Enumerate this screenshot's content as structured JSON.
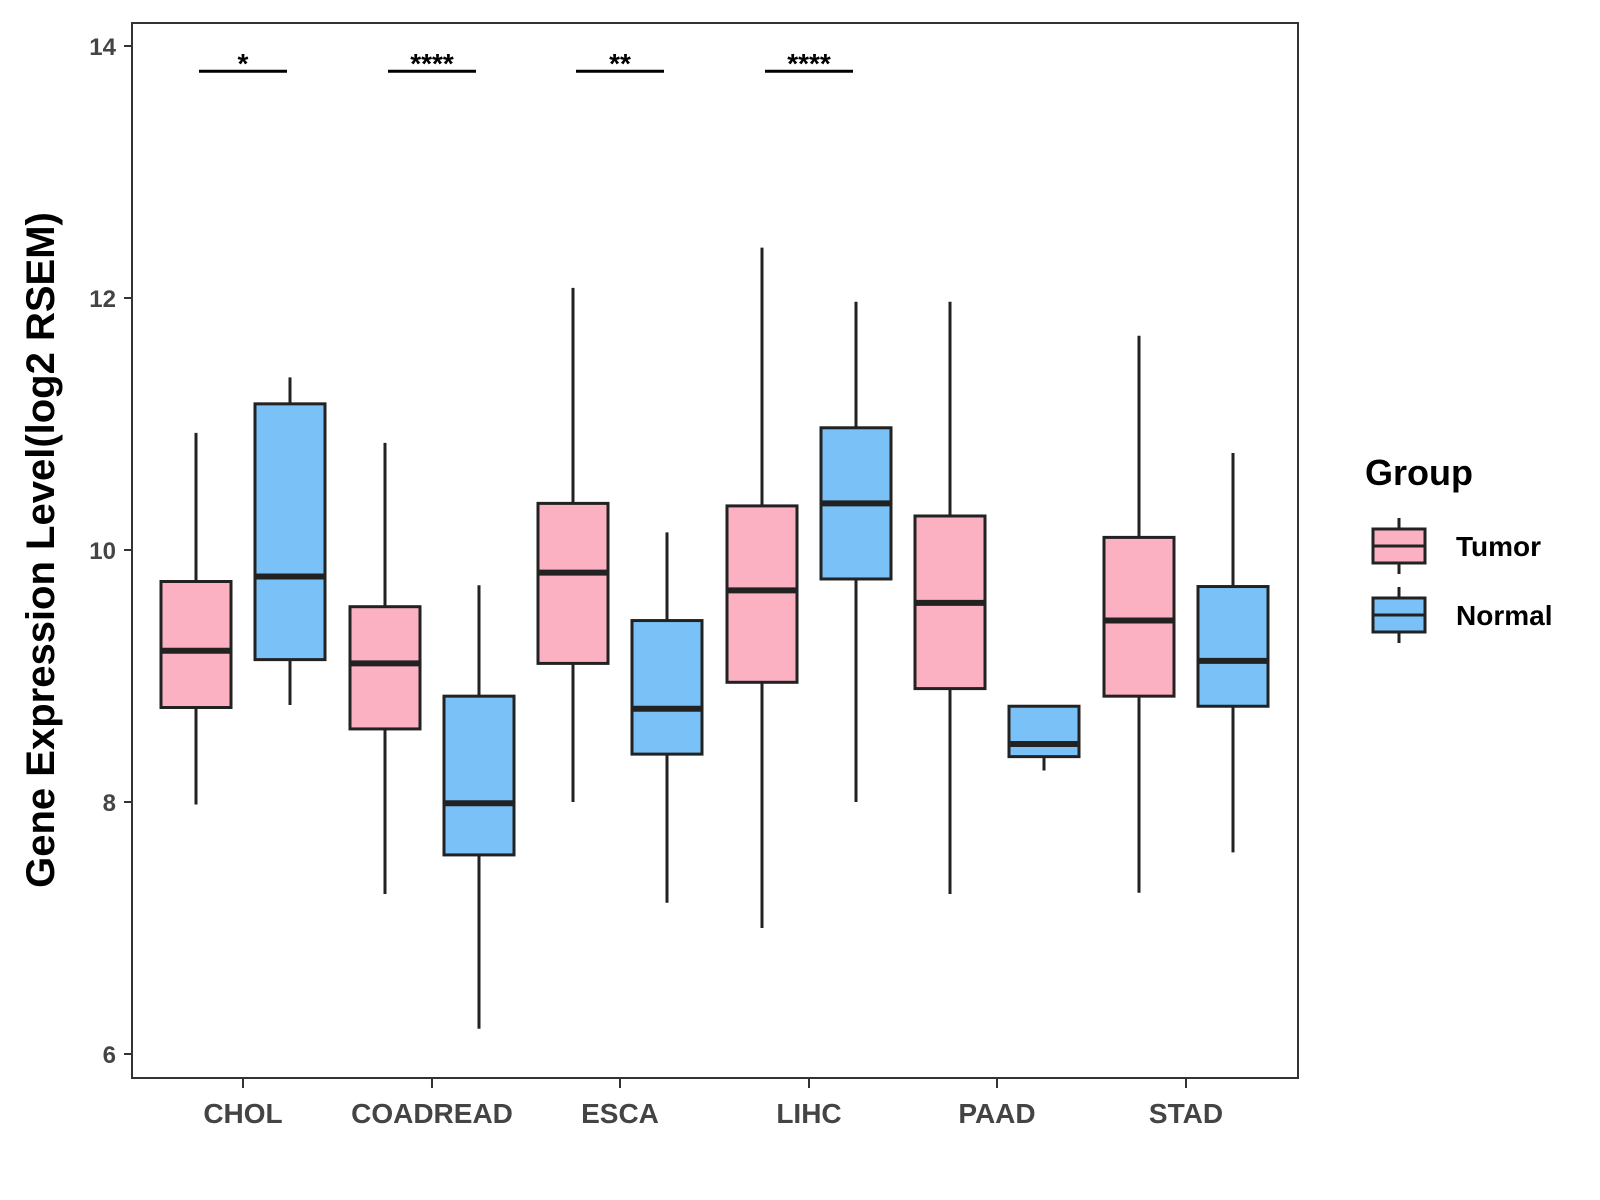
{
  "chart_data": {
    "type": "boxplot",
    "title": "",
    "xlabel": "",
    "ylabel": "Gene Expression Level(log2 RSEM)",
    "ylim": [
      5.8,
      14.2
    ],
    "yticks": [
      6,
      8,
      10,
      12,
      14
    ],
    "categories": [
      "CHOL",
      "COADREAD",
      "ESCA",
      "LIHC",
      "PAAD",
      "STAD"
    ],
    "legend": {
      "title": "Group",
      "position": "right",
      "entries": [
        {
          "name": "Tumor",
          "color": "#FBB1C2"
        },
        {
          "name": "Normal",
          "color": "#79C1F7"
        }
      ]
    },
    "series": [
      {
        "name": "Tumor",
        "color": "#FBB1C2",
        "boxes": [
          {
            "category": "CHOL",
            "whisker_low": 7.98,
            "q1": 8.75,
            "median": 9.2,
            "q3": 9.75,
            "whisker_high": 10.93
          },
          {
            "category": "COADREAD",
            "whisker_low": 7.27,
            "q1": 8.58,
            "median": 9.1,
            "q3": 9.55,
            "whisker_high": 10.85
          },
          {
            "category": "ESCA",
            "whisker_low": 8.0,
            "q1": 9.1,
            "median": 9.82,
            "q3": 10.37,
            "whisker_high": 12.08
          },
          {
            "category": "LIHC",
            "whisker_low": 7.0,
            "q1": 8.95,
            "median": 9.68,
            "q3": 10.35,
            "whisker_high": 12.4
          },
          {
            "category": "PAAD",
            "whisker_low": 7.27,
            "q1": 8.9,
            "median": 9.58,
            "q3": 10.27,
            "whisker_high": 11.97
          },
          {
            "category": "STAD",
            "whisker_low": 7.28,
            "q1": 8.84,
            "median": 9.44,
            "q3": 10.1,
            "whisker_high": 11.7
          }
        ]
      },
      {
        "name": "Normal",
        "color": "#79C1F7",
        "boxes": [
          {
            "category": "CHOL",
            "whisker_low": 8.77,
            "q1": 9.13,
            "median": 9.79,
            "q3": 11.16,
            "whisker_high": 11.37
          },
          {
            "category": "COADREAD",
            "whisker_low": 6.2,
            "q1": 7.58,
            "median": 7.99,
            "q3": 8.84,
            "whisker_high": 9.72
          },
          {
            "category": "ESCA",
            "whisker_low": 7.2,
            "q1": 8.38,
            "median": 8.74,
            "q3": 9.44,
            "whisker_high": 10.14
          },
          {
            "category": "LIHC",
            "whisker_low": 8.0,
            "q1": 9.77,
            "median": 10.37,
            "q3": 10.97,
            "whisker_high": 11.97
          },
          {
            "category": "PAAD",
            "whisker_low": 8.25,
            "q1": 8.36,
            "median": 8.46,
            "q3": 8.76,
            "whisker_high": 8.76
          },
          {
            "category": "STAD",
            "whisker_low": 7.6,
            "q1": 8.76,
            "median": 9.12,
            "q3": 9.71,
            "whisker_high": 10.77
          }
        ]
      }
    ],
    "significance": [
      {
        "category": "CHOL",
        "label": "*",
        "y": 13.8
      },
      {
        "category": "COADREAD",
        "label": "****",
        "y": 13.8
      },
      {
        "category": "ESCA",
        "label": "**",
        "y": 13.8
      },
      {
        "category": "LIHC",
        "label": "****",
        "y": 13.8
      }
    ]
  }
}
